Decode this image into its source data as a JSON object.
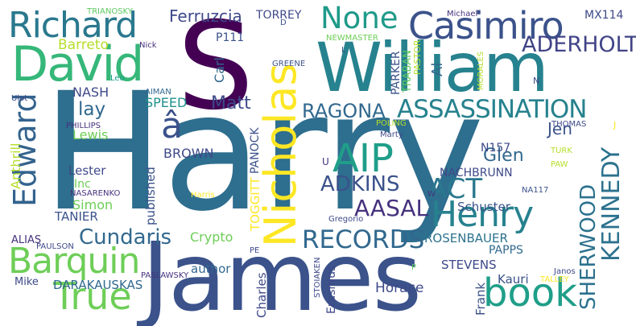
{
  "words": [
    {
      "text": "Harry",
      "color": "#2e6e8e"
    },
    {
      "text": "James",
      "color": "#3b528b"
    },
    {
      "text": "S",
      "color": "#440154"
    },
    {
      "text": "William",
      "color": "#26828e"
    },
    {
      "text": "David",
      "color": "#35b779"
    },
    {
      "text": "Nicholas",
      "color": "#fde725"
    },
    {
      "text": "Richard",
      "color": "#2a788e"
    },
    {
      "text": "Casimiro",
      "color": "#3b528b"
    },
    {
      "text": "None",
      "color": "#1f9a8a"
    },
    {
      "text": "Edward",
      "color": "#33638d"
    },
    {
      "text": "AIP",
      "color": "#1f9e89"
    },
    {
      "text": "Henry",
      "color": "#26828e"
    },
    {
      "text": "Barquin",
      "color": "#6ece58"
    },
    {
      "text": "True",
      "color": "#6ece58"
    },
    {
      "text": "book",
      "color": "#1f9e89"
    },
    {
      "text": "ASSASSINATION",
      "color": "#26828e"
    },
    {
      "text": "RECORDS",
      "color": "#31688e"
    },
    {
      "text": "KENNEDY",
      "color": "#2c728e"
    },
    {
      "text": "SHERWOOD",
      "color": "#2c728e"
    },
    {
      "text": "ADERHOLT",
      "color": "#414487"
    },
    {
      "text": "RAGONA",
      "color": "#31688e"
    },
    {
      "text": "ACT",
      "color": "#2a788e"
    },
    {
      "text": "ADKINS",
      "color": "#3b528b"
    },
    {
      "text": "AASAL",
      "color": "#46327e"
    },
    {
      "text": "Cundaris",
      "color": "#31688e"
    },
    {
      "text": "Matt",
      "color": "#3e4989"
    },
    {
      "text": "Glen",
      "color": "#31688e"
    },
    {
      "text": "Jen",
      "color": "#3b528b"
    },
    {
      "text": "Ferruzcia",
      "color": "#3e4989"
    },
    {
      "text": "Barreto",
      "color": "#b5de2b"
    },
    {
      "text": "lay",
      "color": "#31688e"
    },
    {
      "text": "NASH",
      "color": "#3e4989"
    },
    {
      "text": "Lewis",
      "color": "#6ece58"
    },
    {
      "text": "â",
      "color": "#3b528b"
    },
    {
      "text": "SPEED",
      "color": "#21918c"
    },
    {
      "text": "TORREY",
      "color": "#3e4989"
    },
    {
      "text": "P111",
      "color": "#3b528b"
    },
    {
      "text": "Carl",
      "color": "#31688e"
    },
    {
      "text": "MX114",
      "color": "#3e4989"
    },
    {
      "text": "Al",
      "color": "#31688e"
    },
    {
      "text": "PARKER",
      "color": "#3b528b"
    },
    {
      "text": "TRABAN",
      "color": "#5ec962"
    },
    {
      "text": "PASTOR",
      "color": "#b5de2b"
    },
    {
      "text": "NEWMASTER",
      "color": "#6ece58"
    },
    {
      "text": "N157",
      "color": "#3e4989"
    },
    {
      "text": "NACHBRUNN",
      "color": "#3e4989"
    },
    {
      "text": "ROSENBAUER",
      "color": "#2c728e"
    },
    {
      "text": "PAPPS",
      "color": "#31688e"
    },
    {
      "text": "Schuster",
      "color": "#3b528b"
    },
    {
      "text": "STEVENS",
      "color": "#3e4989"
    },
    {
      "text": "Kauri",
      "color": "#3b528b"
    },
    {
      "text": "Horace",
      "color": "#3e4989"
    },
    {
      "text": "Frank",
      "color": "#3b528b"
    },
    {
      "text": "DARAKAUSKAS",
      "color": "#31688e"
    },
    {
      "text": "Charles",
      "color": "#3e4989"
    },
    {
      "text": "Erasmus",
      "color": "#3e4989"
    },
    {
      "text": "author",
      "color": "#31688e"
    },
    {
      "text": "Crypto",
      "color": "#6ece58"
    },
    {
      "text": "published",
      "color": "#3b528b"
    },
    {
      "text": "TOGGITT",
      "color": "#fde725"
    },
    {
      "text": "PANOCK",
      "color": "#3b528b"
    },
    {
      "text": "BROWN",
      "color": "#3e4989"
    },
    {
      "text": "Lester",
      "color": "#3e4989"
    },
    {
      "text": "Inc",
      "color": "#6ece58"
    },
    {
      "text": "Simon",
      "color": "#6ece58"
    },
    {
      "text": "TANIER",
      "color": "#3b528b"
    },
    {
      "text": "NASARENKO",
      "color": "#46327e"
    },
    {
      "text": "ALIAS",
      "color": "#46327e"
    },
    {
      "text": "PAULSON",
      "color": "#3e4989"
    },
    {
      "text": "Mike",
      "color": "#3e4989"
    },
    {
      "text": "PASLAWSKY",
      "color": "#46327e"
    },
    {
      "text": "Anthrill",
      "color": "#b5de2b"
    },
    {
      "text": "PHILLIPS",
      "color": "#46327e"
    },
    {
      "text": "Ulot",
      "color": "#3e4989"
    },
    {
      "text": "TRIANOSKY",
      "color": "#5ec962"
    },
    {
      "text": "Nick",
      "color": "#46327e"
    },
    {
      "text": "Leo",
      "color": "#1f9e89"
    },
    {
      "text": "AIMAN",
      "color": "#31688e"
    },
    {
      "text": "GREENE",
      "color": "#3b528b"
    },
    {
      "text": "Michael",
      "color": "#46327e"
    },
    {
      "text": "MORALES",
      "color": "#b5de2b"
    },
    {
      "text": "POLING",
      "color": "#b5de2b"
    },
    {
      "text": "Marty",
      "color": "#3e4989"
    },
    {
      "text": "THOMAS",
      "color": "#3e4989"
    },
    {
      "text": "TURK",
      "color": "#b5de2b"
    },
    {
      "text": "PAW",
      "color": "#b5de2b"
    },
    {
      "text": "NA117",
      "color": "#3b528b"
    },
    {
      "text": "Harris",
      "color": "#fde725"
    },
    {
      "text": "Gregorio",
      "color": "#3e4989"
    },
    {
      "text": "STOIAKEN",
      "color": "#3e4989"
    },
    {
      "text": "Janos",
      "color": "#3e4989"
    },
    {
      "text": "TALLEY",
      "color": "#fde725"
    },
    {
      "text": "D",
      "color": "#3b528b"
    },
    {
      "text": "L",
      "color": "#3b528b"
    },
    {
      "text": "N",
      "color": "#3e4989"
    },
    {
      "text": "J",
      "color": "#fde725"
    },
    {
      "text": "U",
      "color": "#46327e"
    },
    {
      "text": "W",
      "color": "#46327e"
    },
    {
      "text": "PE",
      "color": "#3e4989"
    },
    {
      "text": "P",
      "color": "#5ec962"
    }
  ]
}
